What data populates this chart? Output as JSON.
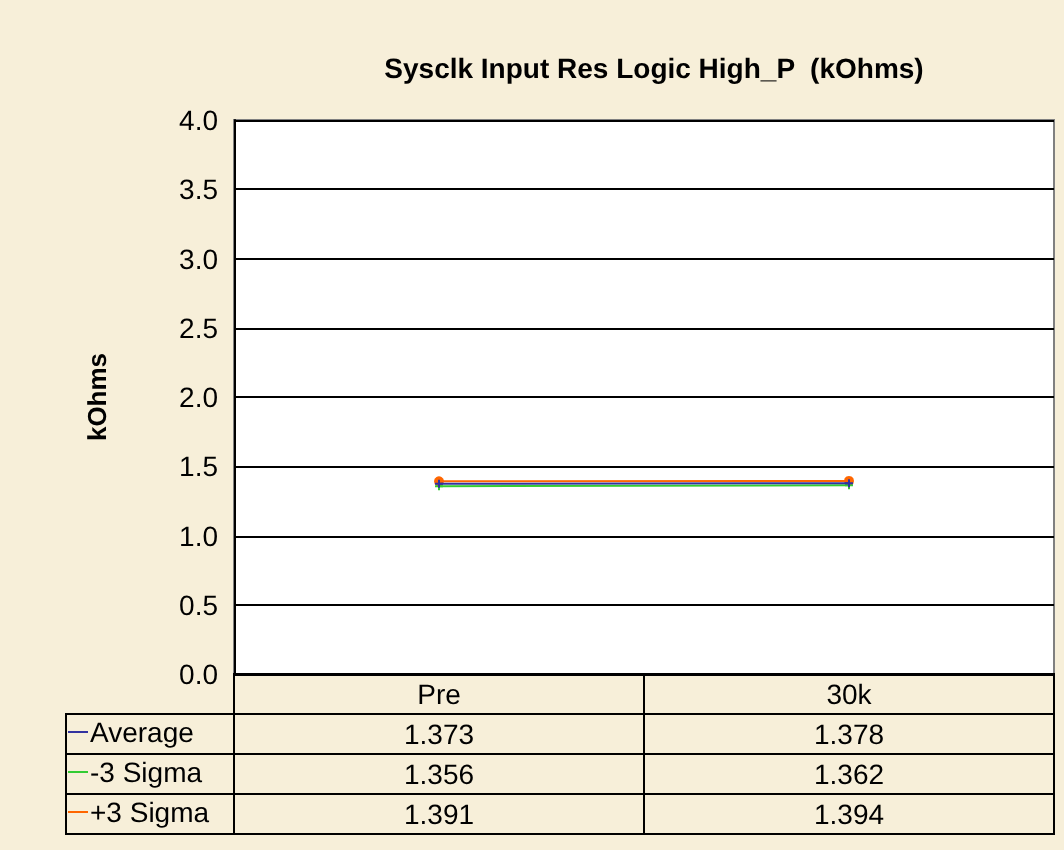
{
  "chart_data": {
    "type": "line",
    "title": "Sysclk Input Res Logic High_P  (kOhms)",
    "ylabel": "kOhms",
    "categories": [
      "Pre",
      "30k"
    ],
    "series": [
      {
        "name": "Average",
        "color": "#3333a0",
        "values": [
          1.373,
          1.378
        ],
        "marker": "cross"
      },
      {
        "name": "-3 Sigma",
        "color": "#33cc33",
        "values": [
          1.356,
          1.362
        ],
        "marker": "cross"
      },
      {
        "name": "+3 Sigma",
        "color": "#ff6600",
        "values": [
          1.391,
          1.394
        ],
        "marker": "circle"
      }
    ],
    "ylim": [
      0,
      4
    ],
    "yticks": [
      {
        "value": 0,
        "label": "0.0"
      },
      0.5,
      {
        "value": 1,
        "label": "1.0"
      },
      1.5,
      {
        "value": 2,
        "label": "2.0"
      },
      2.5,
      {
        "value": 3,
        "label": "3.0"
      },
      3.5,
      {
        "value": 4,
        "label": "4.0"
      }
    ],
    "grid": "y",
    "data_labels": true,
    "legend": "bottom left"
  }
}
